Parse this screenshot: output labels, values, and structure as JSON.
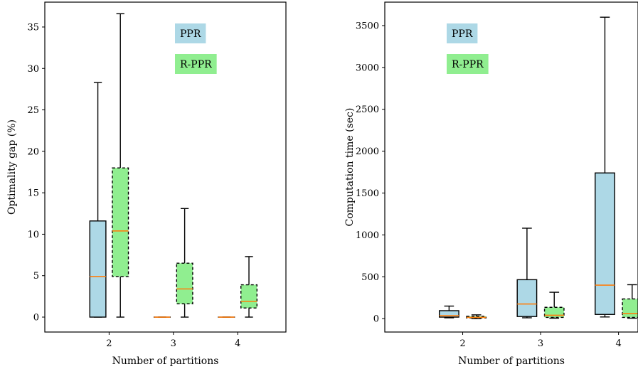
{
  "chart_data": [
    {
      "type": "box",
      "xlabel": "Number of partitions",
      "ylabel": "Optimality gap (%)",
      "categories": [
        "2",
        "3",
        "4"
      ],
      "ylim": [
        -1.8,
        38
      ],
      "yticks": [
        0,
        5,
        10,
        15,
        20,
        25,
        30,
        35
      ],
      "series": [
        {
          "name": "PPR",
          "color": "#add8e6",
          "border": "solid",
          "boxes": [
            {
              "category": "2",
              "min": 0,
              "q1": 0,
              "median": 4.9,
              "q3": 11.6,
              "max": 28.3
            },
            {
              "category": "3",
              "min": 0,
              "q1": 0,
              "median": 0,
              "q3": 0,
              "max": 0
            },
            {
              "category": "4",
              "min": 0,
              "q1": 0,
              "median": 0,
              "q3": 0,
              "max": 0
            }
          ]
        },
        {
          "name": "R-PPR",
          "color": "#90ee90",
          "border": "dashed",
          "boxes": [
            {
              "category": "2",
              "min": 0,
              "q1": 4.9,
              "median": 10.4,
              "q3": 18.0,
              "max": 36.6
            },
            {
              "category": "3",
              "min": 0,
              "q1": 1.6,
              "median": 3.4,
              "q3": 6.5,
              "max": 13.1
            },
            {
              "category": "4",
              "min": 0,
              "q1": 1.1,
              "median": 1.9,
              "q3": 3.9,
              "max": 7.3
            }
          ]
        }
      ]
    },
    {
      "type": "box",
      "xlabel": "Number of partitions",
      "ylabel": "Computation time (sec)",
      "categories": [
        "2",
        "3",
        "4"
      ],
      "ylim": [
        -160,
        3780
      ],
      "yticks": [
        0,
        500,
        1000,
        1500,
        2000,
        2500,
        3000,
        3500
      ],
      "series": [
        {
          "name": "PPR",
          "color": "#add8e6",
          "border": "solid",
          "boxes": [
            {
              "category": "2",
              "min": 10,
              "q1": 18,
              "median": 35,
              "q3": 95,
              "max": 150
            },
            {
              "category": "3",
              "min": 10,
              "q1": 25,
              "median": 175,
              "q3": 465,
              "max": 1080
            },
            {
              "category": "4",
              "min": 20,
              "q1": 50,
              "median": 400,
              "q3": 1740,
              "max": 3600
            }
          ]
        },
        {
          "name": "R-PPR",
          "color": "#90ee90",
          "border": "dashed",
          "boxes": [
            {
              "category": "2",
              "min": 0,
              "q1": 8,
              "median": 15,
              "q3": 28,
              "max": 45
            },
            {
              "category": "3",
              "min": 5,
              "q1": 15,
              "median": 40,
              "q3": 135,
              "max": 315
            },
            {
              "category": "4",
              "min": 5,
              "q1": 15,
              "median": 60,
              "q3": 235,
              "max": 405
            }
          ]
        }
      ]
    }
  ]
}
